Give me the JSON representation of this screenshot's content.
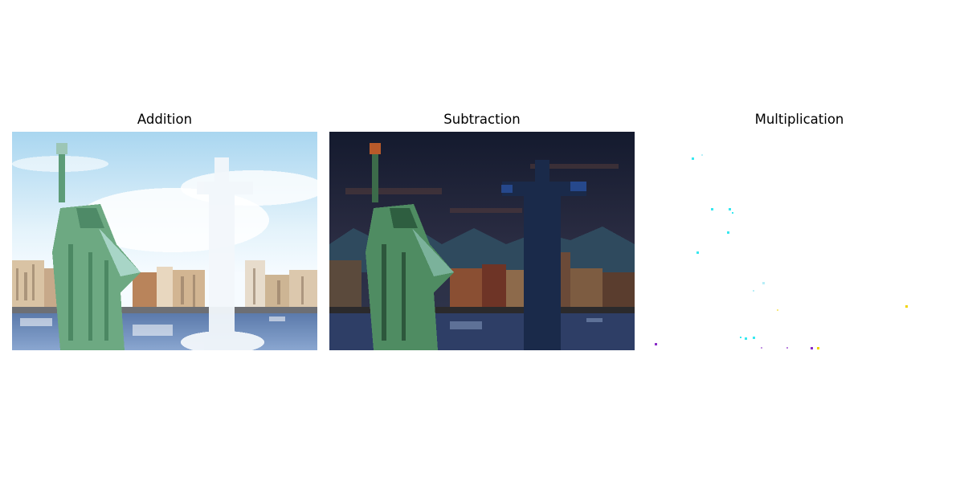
{
  "panels": [
    {
      "title": "Addition"
    },
    {
      "title": "Subtraction"
    },
    {
      "title": "Multiplication"
    }
  ]
}
